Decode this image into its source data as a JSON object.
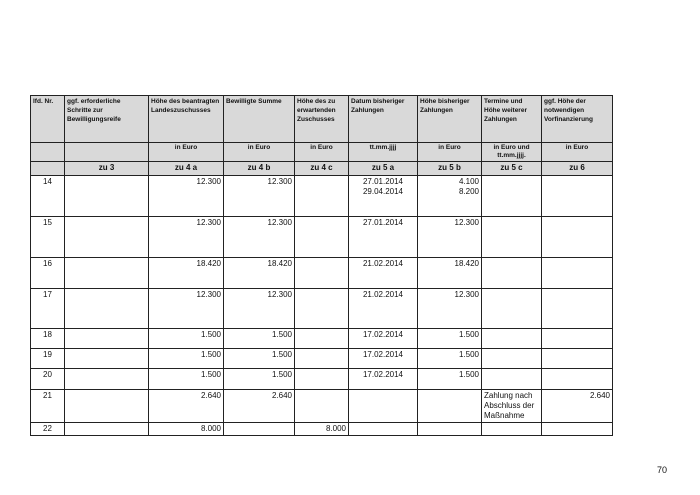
{
  "table": {
    "headers": [
      "lfd. Nr.",
      "ggf. erforderliche Schritte zur Bewilligungsreife",
      "Höhe des beantragten Landeszuschusses",
      "Bewilligte Summe",
      "Höhe des zu erwartenden Zuschusses",
      "Datum bisheriger Zahlungen",
      "Höhe bisheriger Zahlungen",
      "Termine und Höhe weiterer Zahlungen",
      "ggf. Höhe der notwendigen Vorfinanzierung"
    ],
    "units": [
      "",
      "",
      "in Euro",
      "in Euro",
      "in Euro",
      "tt.mm.jjjj",
      "in Euro",
      "in Euro und tt.mm.jjjj.",
      "in Euro"
    ],
    "refs": [
      "",
      "zu 3",
      "zu 4 a",
      "zu 4 b",
      "zu 4 c",
      "zu 5 a",
      "zu 5 b",
      "zu 5 c",
      "zu 6"
    ],
    "rows": [
      [
        "14",
        "",
        "12.300",
        "12.300",
        "",
        "27.01.2014\n29.04.2014",
        "4.100\n8.200",
        "",
        ""
      ],
      [
        "15",
        "",
        "12.300",
        "12.300",
        "",
        "27.01.2014",
        "12.300",
        "",
        ""
      ],
      [
        "16",
        "",
        "18.420",
        "18.420",
        "",
        "21.02.2014",
        "18.420",
        "",
        ""
      ],
      [
        "17",
        "",
        "12.300",
        "12.300",
        "",
        "21.02.2014",
        "12.300",
        "",
        ""
      ],
      [
        "18",
        "",
        "1.500",
        "1.500",
        "",
        "17.02.2014",
        "1.500",
        "",
        ""
      ],
      [
        "19",
        "",
        "1.500",
        "1.500",
        "",
        "17.02.2014",
        "1.500",
        "",
        ""
      ],
      [
        "20",
        "",
        "1.500",
        "1.500",
        "",
        "17.02.2014",
        "1.500",
        "",
        ""
      ],
      [
        "21",
        "",
        "2.640",
        "2.640",
        "",
        "",
        "",
        "Zahlung nach Abschluss der Maßnahme",
        "2.640"
      ],
      [
        "22",
        "",
        "8.000",
        "",
        "8.000",
        "",
        "",
        "",
        ""
      ]
    ]
  },
  "page_number": "70"
}
